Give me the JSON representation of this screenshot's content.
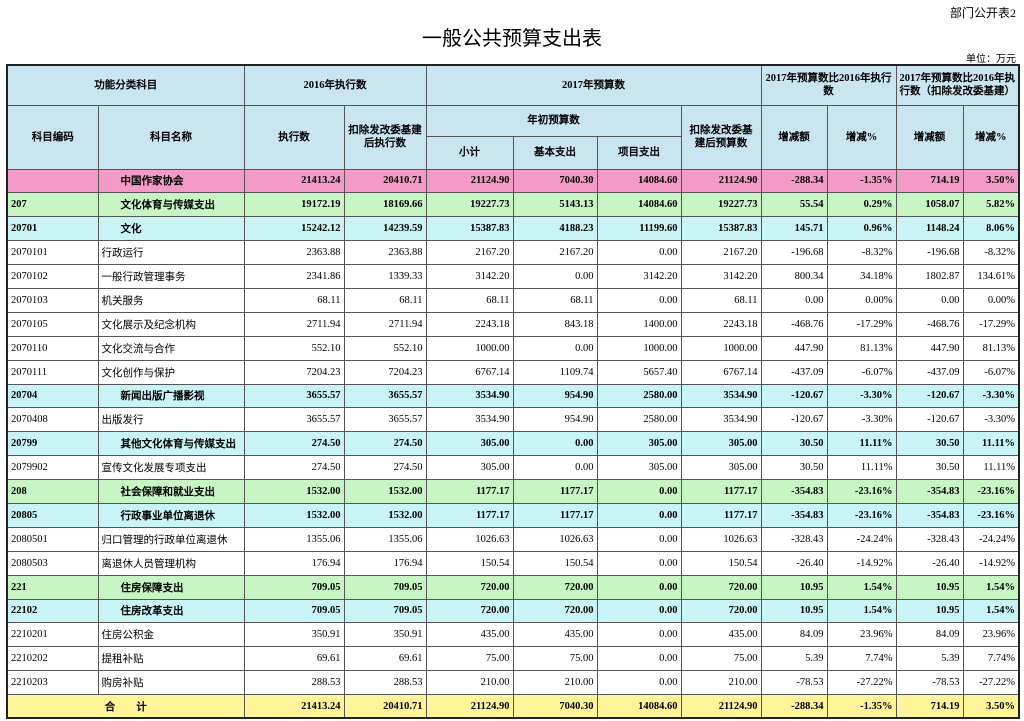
{
  "header": {
    "note": "部门公开表2",
    "title": "一般公共预算支出表",
    "unit": "单位：万元"
  },
  "columns": {
    "group1": "功能分类科目",
    "group2": "2016年执行数",
    "group3": "2017年预算数",
    "group4": "2017年预算数比2016年执行数",
    "group5": "2017年预算数比2016年执行数（扣除发改委基建）",
    "code": "科目编码",
    "name": "科目名称",
    "exec": "执行数",
    "exec_adj": "扣除发改委基建后执行数",
    "initial": "年初预算数",
    "budget_adj": "扣除发改委基建后预算数",
    "subtotal": "小计",
    "basic": "基本支出",
    "project": "项目支出",
    "diff1": "增减额",
    "pct1": "增减%",
    "diff2": "增减额",
    "pct2": "增减%"
  },
  "table": {
    "rows": [
      {
        "name": "中国作家协会",
        "values": [
          "21413.24",
          "20410.71",
          "21124.90",
          "7040.30",
          "14084.60",
          "21124.90",
          "-288.34",
          "-1.35%",
          "714.19",
          "3.50%"
        ]
      },
      {
        "code": "207",
        "name": "文化体育与传媒支出",
        "values": [
          "19172.19",
          "18169.66",
          "19227.73",
          "5143.13",
          "14084.60",
          "19227.73",
          "55.54",
          "0.29%",
          "1058.07",
          "5.82%"
        ]
      },
      {
        "code": "20701",
        "name": "文化",
        "values": [
          "15242.12",
          "14239.59",
          "15387.83",
          "4188.23",
          "11199.60",
          "15387.83",
          "145.71",
          "0.96%",
          "1148.24",
          "8.06%"
        ]
      },
      {
        "code": "2070101",
        "name": "行政运行",
        "values": [
          "2363.88",
          "2363.88",
          "2167.20",
          "2167.20",
          "0.00",
          "2167.20",
          "-196.68",
          "-8.32%",
          "-196.68",
          "-8.32%"
        ]
      },
      {
        "code": "2070102",
        "name": "一般行政管理事务",
        "values": [
          "2341.86",
          "1339.33",
          "3142.20",
          "0.00",
          "3142.20",
          "3142.20",
          "800.34",
          "34.18%",
          "1802.87",
          "134.61%"
        ]
      },
      {
        "code": "2070103",
        "name": "机关服务",
        "values": [
          "68.11",
          "68.11",
          "68.11",
          "68.11",
          "0.00",
          "68.11",
          "0.00",
          "0.00%",
          "0.00",
          "0.00%"
        ]
      },
      {
        "code": "2070105",
        "name": "文化展示及纪念机构",
        "values": [
          "2711.94",
          "2711.94",
          "2243.18",
          "843.18",
          "1400.00",
          "2243.18",
          "-468.76",
          "-17.29%",
          "-468.76",
          "-17.29%"
        ]
      },
      {
        "code": "2070110",
        "name": "文化交流与合作",
        "values": [
          "552.10",
          "552.10",
          "1000.00",
          "0.00",
          "1000.00",
          "1000.00",
          "447.90",
          "81.13%",
          "447.90",
          "81.13%"
        ]
      },
      {
        "code": "2070111",
        "name": "文化创作与保护",
        "values": [
          "7204.23",
          "7204.23",
          "6767.14",
          "1109.74",
          "5657.40",
          "6767.14",
          "-437.09",
          "-6.07%",
          "-437.09",
          "-6.07%"
        ]
      },
      {
        "code": "20704",
        "name": "新闻出版广播影视",
        "values": [
          "3655.57",
          "3655.57",
          "3534.90",
          "954.90",
          "2580.00",
          "3534.90",
          "-120.67",
          "-3.30%",
          "-120.67",
          "-3.30%"
        ]
      },
      {
        "code": "2070408",
        "name": "出版发行",
        "values": [
          "3655.57",
          "3655.57",
          "3534.90",
          "954.90",
          "2580.00",
          "3534.90",
          "-120.67",
          "-3.30%",
          "-120.67",
          "-3.30%"
        ]
      },
      {
        "code": "20799",
        "name": "其他文化体育与传媒支出",
        "values": [
          "274.50",
          "274.50",
          "305.00",
          "0.00",
          "305.00",
          "305.00",
          "30.50",
          "11.11%",
          "30.50",
          "11.11%"
        ]
      },
      {
        "code": "2079902",
        "name": "宣传文化发展专项支出",
        "values": [
          "274.50",
          "274.50",
          "305.00",
          "0.00",
          "305.00",
          "305.00",
          "30.50",
          "11.11%",
          "30.50",
          "11.11%"
        ]
      },
      {
        "code": "208",
        "name": "社会保障和就业支出",
        "values": [
          "1532.00",
          "1532.00",
          "1177.17",
          "1177.17",
          "0.00",
          "1177.17",
          "-354.83",
          "-23.16%",
          "-354.83",
          "-23.16%"
        ]
      },
      {
        "code": "20805",
        "name": "行政事业单位离退休",
        "values": [
          "1532.00",
          "1532.00",
          "1177.17",
          "1177.17",
          "0.00",
          "1177.17",
          "-354.83",
          "-23.16%",
          "-354.83",
          "-23.16%"
        ]
      },
      {
        "code": "2080501",
        "name": "归口管理的行政单位离退休",
        "values": [
          "1355.06",
          "1355.06",
          "1026.63",
          "1026.63",
          "0.00",
          "1026.63",
          "-328.43",
          "-24.24%",
          "-328.43",
          "-24.24%"
        ]
      },
      {
        "code": "2080503",
        "name": "离退休人员管理机构",
        "values": [
          "176.94",
          "176.94",
          "150.54",
          "150.54",
          "0.00",
          "150.54",
          "-26.40",
          "-14.92%",
          "-26.40",
          "-14.92%"
        ]
      },
      {
        "code": "221",
        "name": "住房保障支出",
        "values": [
          "709.05",
          "709.05",
          "720.00",
          "720.00",
          "0.00",
          "720.00",
          "10.95",
          "1.54%",
          "10.95",
          "1.54%"
        ]
      },
      {
        "code": "22102",
        "name": "住房改革支出",
        "values": [
          "709.05",
          "709.05",
          "720.00",
          "720.00",
          "0.00",
          "720.00",
          "10.95",
          "1.54%",
          "10.95",
          "1.54%"
        ]
      },
      {
        "code": "2210201",
        "name": "住房公积金",
        "values": [
          "350.91",
          "350.91",
          "435.00",
          "435.00",
          "0.00",
          "435.00",
          "84.09",
          "23.96%",
          "84.09",
          "23.96%"
        ]
      },
      {
        "code": "2210202",
        "name": "提租补贴",
        "values": [
          "69.61",
          "69.61",
          "75.00",
          "75.00",
          "0.00",
          "75.00",
          "5.39",
          "7.74%",
          "5.39",
          "7.74%"
        ]
      },
      {
        "code": "2210203",
        "name": "购房补贴",
        "values": [
          "288.53",
          "288.53",
          "210.00",
          "210.00",
          "0.00",
          "210.00",
          "-78.53",
          "-27.22%",
          "-78.53",
          "-27.22%"
        ]
      }
    ],
    "total": {
      "label": "合　　计",
      "values": [
        "21413.24",
        "20410.71",
        "21124.90",
        "7040.30",
        "14084.60",
        "21124.90",
        "-288.34",
        "-1.35%",
        "714.19",
        "3.50%"
      ]
    }
  }
}
